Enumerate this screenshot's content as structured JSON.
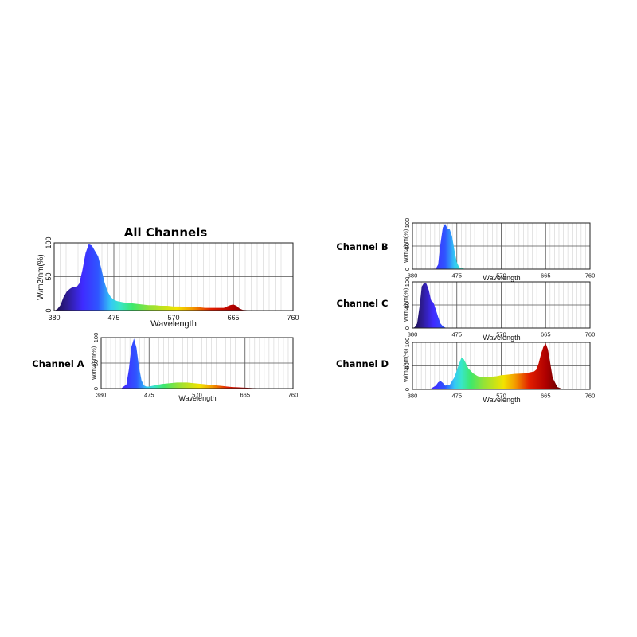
{
  "spectrum_colors": [
    "#1a0d4a",
    "#2d1b8f",
    "#3f2bff",
    "#2f56ff",
    "#34c8f5",
    "#39e6c8",
    "#3ee86a",
    "#8ee23a",
    "#f2e300",
    "#f39a00",
    "#e21e00",
    "#b00000",
    "#5a0000"
  ],
  "chart_data": [
    {
      "type": "area",
      "title": "All Channels",
      "xlabel": "Wavelength",
      "ylabel": "W/m2/nm(%)",
      "xlim": [
        380,
        760
      ],
      "ylim": [
        0,
        100
      ],
      "xticks": [
        "380",
        "475",
        "570",
        "665",
        "760"
      ],
      "yticks": [
        "0",
        "50",
        "100"
      ],
      "x": [
        380,
        385,
        390,
        395,
        400,
        405,
        410,
        415,
        420,
        425,
        430,
        435,
        440,
        445,
        450,
        455,
        460,
        465,
        470,
        475,
        480,
        490,
        500,
        510,
        520,
        530,
        540,
        550,
        560,
        570,
        580,
        590,
        600,
        610,
        620,
        630,
        640,
        650,
        655,
        660,
        665,
        670,
        675,
        680,
        690,
        700,
        720,
        740,
        760
      ],
      "y": [
        0,
        2,
        8,
        20,
        28,
        32,
        35,
        34,
        40,
        60,
        85,
        98,
        96,
        88,
        80,
        62,
        42,
        28,
        20,
        16,
        14,
        12,
        11,
        10,
        9,
        8,
        8,
        7,
        7,
        6,
        6,
        5,
        5,
        5,
        4,
        4,
        4,
        4,
        6,
        8,
        9,
        7,
        3,
        1,
        0.5,
        0,
        0,
        0,
        0
      ]
    },
    {
      "type": "area",
      "title": "Channel A",
      "xlabel": "Wavelength",
      "ylabel": "W/m2/nm(%)",
      "xlim": [
        380,
        760
      ],
      "ylim": [
        0,
        100
      ],
      "xticks": [
        "380",
        "475",
        "570",
        "665",
        "760"
      ],
      "yticks": [
        "0",
        "50",
        "100"
      ],
      "x": [
        380,
        420,
        430,
        435,
        440,
        445,
        450,
        455,
        460,
        465,
        470,
        475,
        480,
        490,
        500,
        510,
        520,
        530,
        540,
        550,
        560,
        570,
        580,
        590,
        600,
        610,
        620,
        630,
        640,
        650,
        660,
        670,
        680,
        700,
        720,
        760
      ],
      "y": [
        0,
        0.5,
        8,
        38,
        82,
        98,
        80,
        42,
        16,
        6,
        4,
        4,
        5,
        7,
        9,
        10,
        11,
        12,
        12,
        12,
        11,
        10,
        9,
        8,
        7,
        6,
        5,
        4,
        3,
        2.5,
        2,
        1.5,
        1,
        0.5,
        0,
        0
      ]
    },
    {
      "type": "area",
      "title": "Channel B",
      "xlabel": "Wavelength",
      "ylabel": "W/m2/nm(%)",
      "xlim": [
        380,
        760
      ],
      "ylim": [
        0,
        100
      ],
      "xticks": [
        "380",
        "475",
        "570",
        "665",
        "760"
      ],
      "yticks": [
        "0",
        "50",
        "100"
      ],
      "x": [
        380,
        430,
        435,
        440,
        445,
        450,
        455,
        460,
        465,
        470,
        475,
        480,
        490,
        500,
        760
      ],
      "y": [
        0,
        1,
        10,
        55,
        90,
        98,
        88,
        86,
        70,
        40,
        15,
        4,
        1,
        0,
        0
      ]
    },
    {
      "type": "area",
      "title": "Channel C",
      "xlabel": "Wavelength",
      "ylabel": "W/m2/nm(%)",
      "xlim": [
        380,
        760
      ],
      "ylim": [
        0,
        100
      ],
      "xticks": [
        "380",
        "475",
        "570",
        "665",
        "760"
      ],
      "yticks": [
        "0",
        "50",
        "100"
      ],
      "x": [
        380,
        385,
        390,
        395,
        400,
        405,
        410,
        415,
        420,
        425,
        430,
        435,
        440,
        445,
        450,
        455,
        460,
        470,
        760
      ],
      "y": [
        0,
        2,
        10,
        45,
        90,
        98,
        96,
        82,
        60,
        55,
        40,
        24,
        10,
        4,
        1,
        0.5,
        0,
        0,
        0
      ]
    },
    {
      "type": "area",
      "title": "Channel D",
      "xlabel": "Wavelength",
      "ylabel": "W/m2/nm(%)",
      "xlim": [
        380,
        760
      ],
      "ylim": [
        0,
        100
      ],
      "xticks": [
        "380",
        "475",
        "570",
        "665",
        "760"
      ],
      "yticks": [
        "0",
        "50",
        "100"
      ],
      "x": [
        380,
        400,
        420,
        430,
        435,
        440,
        445,
        450,
        460,
        470,
        480,
        485,
        490,
        495,
        500,
        510,
        520,
        530,
        540,
        550,
        560,
        570,
        580,
        600,
        620,
        630,
        640,
        645,
        650,
        655,
        660,
        665,
        670,
        675,
        680,
        690,
        700,
        720,
        760
      ],
      "y": [
        0,
        0,
        2,
        8,
        15,
        18,
        14,
        8,
        10,
        26,
        55,
        68,
        64,
        54,
        44,
        34,
        28,
        26,
        26,
        27,
        28,
        30,
        31,
        33,
        34,
        36,
        38,
        42,
        55,
        75,
        90,
        98,
        85,
        55,
        25,
        5,
        1,
        0,
        0
      ]
    }
  ]
}
